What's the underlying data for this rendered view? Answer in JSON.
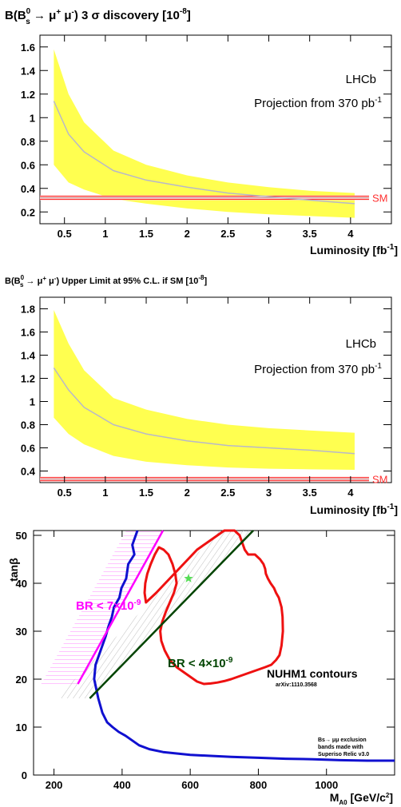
{
  "chart_data": [
    {
      "type": "area",
      "title": "B(B_s^0 → μ⁺ μ⁻) 3 σ discovery [10⁻⁸]",
      "title_parts": {
        "pre": "B(B",
        "sup": "0",
        "sub": "s",
        "mid": " → μ",
        "mu_sup1": "+",
        "mu_gap": " μ",
        "mu_sup2": "-",
        "post": ") 3 σ discovery [10",
        "exp": "-8",
        "close": "]"
      },
      "xlabel": "Luminosity [fb⁻¹]",
      "xlabel_parts": {
        "pre": "Luminosity [fb",
        "exp": "-1",
        "close": "]"
      },
      "experiment_label": "LHCb",
      "projection_label": {
        "pre": "Projection from 370 pb",
        "exp": "-1"
      },
      "sm_label": "SM",
      "xlim": [
        0.2,
        4.5
      ],
      "ylim": [
        0.1,
        1.7
      ],
      "xticks": [
        0.5,
        1,
        1.5,
        2,
        2.5,
        3,
        3.5,
        4
      ],
      "xtick_labels": [
        "0.5",
        "1",
        "1.5",
        "2",
        "2.5",
        "3",
        "3.5",
        "4"
      ],
      "yticks": [
        0.2,
        0.4,
        0.6,
        0.8,
        1,
        1.2,
        1.4,
        1.6
      ],
      "ytick_labels": [
        "0.2",
        "0.4",
        "0.6",
        "0.8",
        "1",
        "1.2",
        "1.4",
        "1.6"
      ],
      "sm_value": 0.32,
      "band_color": "#ffff50",
      "median_color": "#b8b8c8",
      "sm_color": "#ff3030",
      "x": [
        0.37,
        0.55,
        0.74,
        1.1,
        1.5,
        2.0,
        2.5,
        3.0,
        3.5,
        4.05
      ],
      "median": [
        1.14,
        0.86,
        0.71,
        0.55,
        0.47,
        0.41,
        0.36,
        0.33,
        0.3,
        0.27
      ],
      "upper": [
        1.58,
        1.2,
        0.96,
        0.72,
        0.6,
        0.51,
        0.45,
        0.41,
        0.38,
        0.36
      ],
      "lower": [
        0.6,
        0.45,
        0.39,
        0.31,
        0.27,
        0.23,
        0.2,
        0.18,
        0.165,
        0.15
      ]
    },
    {
      "type": "area",
      "title": "B(B_s^0 → μ⁺ μ⁻) Upper Limit at 95% C.L. if SM [10⁻⁸]",
      "title_parts": {
        "pre": "B(B",
        "sup": "0",
        "sub": "s",
        "mid": " → μ",
        "mu_sup1": "+",
        "mu_gap": " μ",
        "mu_sup2": "-",
        "post": ") Upper Limit at 95% C.L. if SM [10",
        "exp": "-8",
        "close": "]"
      },
      "xlabel": "Luminosity [fb⁻¹]",
      "xlabel_parts": {
        "pre": "Luminosity [fb",
        "exp": "-1",
        "close": "]"
      },
      "experiment_label": "LHCb",
      "projection_label": {
        "pre": "Projection from 370 pb",
        "exp": "-1"
      },
      "sm_label": "SM",
      "xlim": [
        0.2,
        4.5
      ],
      "ylim": [
        0.3,
        1.9
      ],
      "xticks": [
        0.5,
        1,
        1.5,
        2,
        2.5,
        3,
        3.5,
        4
      ],
      "xtick_labels": [
        "0.5",
        "1",
        "1.5",
        "2",
        "2.5",
        "3",
        "3.5",
        "4"
      ],
      "yticks": [
        0.4,
        0.6,
        0.8,
        1,
        1.2,
        1.4,
        1.6,
        1.8
      ],
      "ytick_labels": [
        "0.4",
        "0.6",
        "0.8",
        "1",
        "1.2",
        "1.4",
        "1.6",
        "1.8"
      ],
      "sm_value": 0.33,
      "band_color": "#ffff50",
      "median_color": "#b8b8c8",
      "sm_color": "#ff3030",
      "x": [
        0.37,
        0.55,
        0.74,
        1.1,
        1.5,
        2.0,
        2.5,
        3.0,
        3.5,
        4.05
      ],
      "median": [
        1.29,
        1.1,
        0.95,
        0.8,
        0.72,
        0.66,
        0.62,
        0.6,
        0.58,
        0.55
      ],
      "upper": [
        1.79,
        1.5,
        1.27,
        1.03,
        0.93,
        0.85,
        0.8,
        0.77,
        0.75,
        0.73
      ],
      "lower": [
        0.86,
        0.72,
        0.63,
        0.53,
        0.48,
        0.45,
        0.43,
        0.42,
        0.415,
        0.41
      ]
    },
    {
      "type": "line",
      "title": "",
      "xlabel": "M_A0 [GeV/c²]",
      "xlabel_parts": {
        "pre": "M",
        "sub": "A0",
        "post": " [GeV/c",
        "exp": "2",
        "close": "]"
      },
      "ylabel": "tanβ",
      "xlim": [
        140,
        1200
      ],
      "ylim": [
        0,
        51
      ],
      "xticks": [
        200,
        400,
        600,
        800,
        1000
      ],
      "xtick_labels": [
        "200",
        "400",
        "600",
        "800",
        "1000"
      ],
      "yticks": [
        0,
        10,
        20,
        30,
        40,
        50
      ],
      "ytick_labels": [
        "0",
        "10",
        "20",
        "30",
        "40",
        "50"
      ],
      "annotations": {
        "br7": {
          "pre": "BR < 7×10",
          "exp": "-9"
        },
        "br4": {
          "pre": "BR < 4×10",
          "exp": "-9"
        },
        "contours_title": "NUHM1 contours",
        "arxiv": "arXiv:1110.3568",
        "exclusion_note": [
          "Bs→ μμ exclusion",
          "bands made with",
          "Superiso Relic v3.0"
        ]
      },
      "colors": {
        "br7_line": "#ff00ff",
        "br4_line": "#004400",
        "blue_contour": "#1010d0",
        "red_contour": "#ee1111",
        "star": "#55dd55",
        "hatch": "#c0c0c0"
      },
      "star_point": {
        "x": 595,
        "y": 41
      },
      "series": [
        {
          "id": "br7-line",
          "x": [
            270,
            520
          ],
          "y": [
            19,
            51
          ]
        },
        {
          "id": "br4-line",
          "x": [
            305,
            785
          ],
          "y": [
            16,
            51
          ]
        },
        {
          "id": "blue-contour",
          "x": [
            445,
            430,
            436,
            418,
            412,
            398,
            392,
            376,
            370,
            360,
            352,
            342,
            332,
            322,
            318,
            330,
            342,
            356,
            372,
            390,
            410,
            430,
            450,
            480,
            520,
            560,
            600,
            660,
            720,
            800,
            880,
            960,
            1040,
            1120,
            1200
          ],
          "y": [
            51,
            48,
            46,
            44,
            41,
            39,
            37,
            35,
            33,
            31,
            29,
            27,
            25,
            23,
            20,
            16,
            13,
            11,
            10,
            9,
            8.2,
            7.2,
            6.2,
            5.4,
            4.8,
            4.5,
            4.2,
            4,
            3.8,
            3.6,
            3.4,
            3.3,
            3.1,
            3,
            3
          ]
        },
        {
          "id": "red-contour",
          "x": [
            470,
            500,
            540,
            580,
            620,
            660,
            700,
            730,
            745,
            755,
            760,
            770,
            790,
            805,
            815,
            820,
            822,
            828,
            836,
            846,
            852,
            860,
            864,
            868,
            871,
            872,
            868,
            862,
            852,
            838,
            820,
            800,
            780,
            760,
            740,
            720,
            700,
            680,
            660,
            640,
            620,
            600,
            580,
            560,
            540,
            525,
            515,
            512,
            518,
            528,
            540,
            552,
            560,
            556,
            548,
            536,
            522,
            508,
            496,
            484,
            474,
            468,
            466,
            470
          ],
          "y": [
            36,
            38,
            41,
            44,
            47,
            49,
            51,
            51,
            50,
            48,
            47,
            46,
            46,
            45,
            44,
            43,
            42,
            41,
            40,
            39,
            38,
            37,
            36,
            35,
            33,
            30,
            27,
            25,
            24,
            23,
            22.5,
            22,
            21.5,
            21,
            20.5,
            20,
            19.6,
            19.3,
            19.1,
            19,
            19.5,
            20.5,
            21.5,
            22.5,
            24,
            26,
            28,
            30,
            32,
            34,
            36,
            38,
            40,
            42,
            44,
            46,
            47,
            47.5,
            46,
            44,
            42,
            40,
            38,
            36
          ]
        }
      ]
    }
  ]
}
